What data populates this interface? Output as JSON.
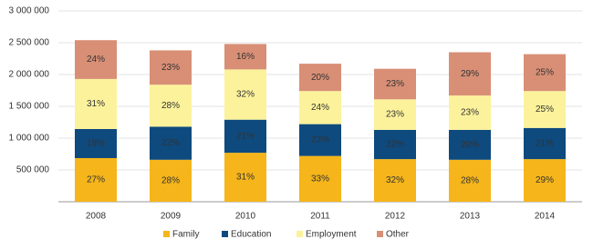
{
  "chart_data": {
    "type": "stacked_bar",
    "categories": [
      "2008",
      "2009",
      "2010",
      "2011",
      "2012",
      "2013",
      "2014"
    ],
    "series": [
      {
        "name": "Family",
        "color": "#f5b51b",
        "values": [
          686000,
          660000,
          770000,
          720000,
          670000,
          660000,
          670000
        ],
        "value_labels": [
          "27%",
          "28%",
          "31%",
          "33%",
          "32%",
          "28%",
          "29%"
        ]
      },
      {
        "name": "Education",
        "color": "#0e4a7e",
        "values": [
          457000,
          520000,
          520000,
          500000,
          460000,
          470000,
          490000
        ],
        "value_labels": [
          "18%",
          "22%",
          "21%",
          "23%",
          "22%",
          "20%",
          "21%"
        ]
      },
      {
        "name": "Employment",
        "color": "#fcf29b",
        "values": [
          787000,
          660000,
          790000,
          520000,
          480000,
          540000,
          580000
        ],
        "value_labels": [
          "31%",
          "28%",
          "32%",
          "24%",
          "23%",
          "23%",
          "25%"
        ]
      },
      {
        "name": "Other",
        "color": "#d88f76",
        "values": [
          610000,
          540000,
          400000,
          430000,
          480000,
          680000,
          580000
        ],
        "value_labels": [
          "24%",
          "23%",
          "16%",
          "20%",
          "23%",
          "29%",
          "25%"
        ]
      }
    ],
    "ylim": [
      0,
      3000000
    ],
    "yticks": [
      {
        "value": 500000,
        "label": "500 000"
      },
      {
        "value": 1000000,
        "label": "1 000 000"
      },
      {
        "value": 1500000,
        "label": "1 500 000"
      },
      {
        "value": 2000000,
        "label": "2 000 000"
      },
      {
        "value": 2500000,
        "label": "2 500 000"
      },
      {
        "value": 3000000,
        "label": "3 000 000"
      }
    ],
    "grid": true,
    "legend": "bottom"
  }
}
